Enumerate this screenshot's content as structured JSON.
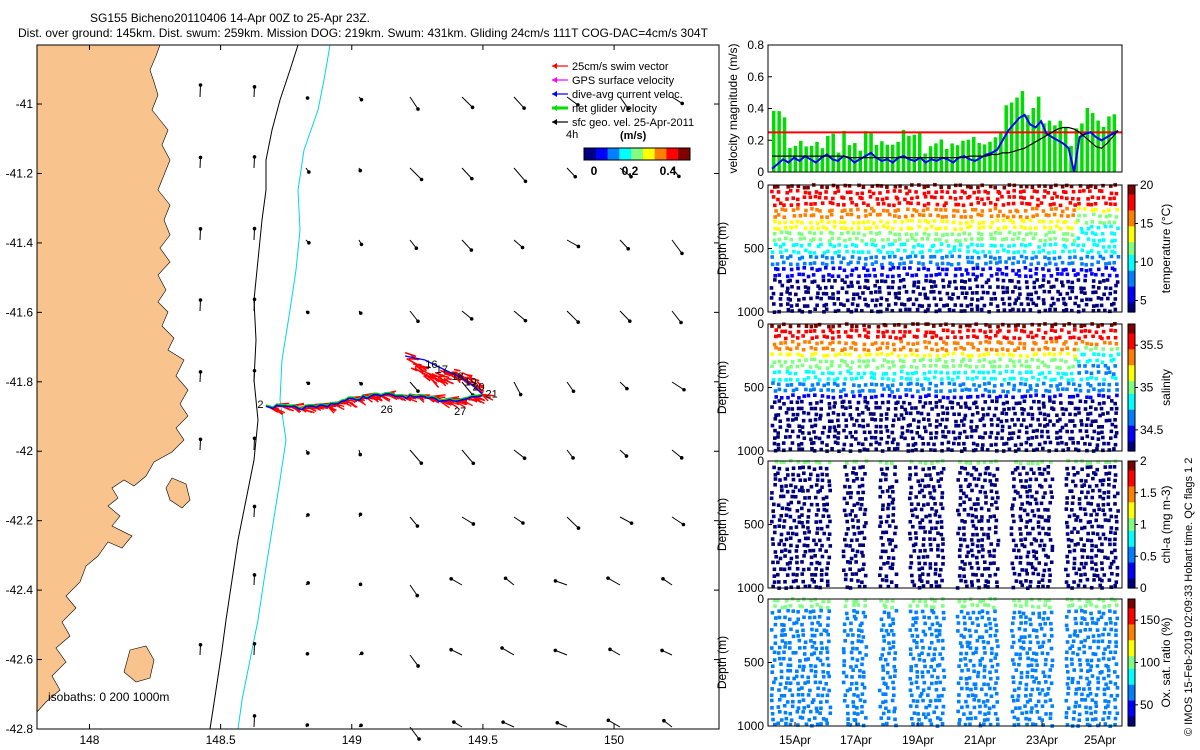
{
  "header": {
    "title": "SG155 Bicheno20110406 14-Apr 00Z to 25-Apr 23Z.",
    "subtitle": "Dist. over ground: 145km. Dist. swum: 259km. Mission DOG: 219km. Swum: 431km. Gliding 24cm/s 111T COG-DAC=4cm/s 304T"
  },
  "colors": {
    "land": "#f9c38e",
    "coast_line": "#000000",
    "isobath_200": "#000000",
    "isobath_1000": "#00d7e6",
    "swim": "#ff0000",
    "gps": "#ff00ff",
    "dac": "#0000ff",
    "net": "#00dd00",
    "geo": "#000000"
  },
  "legend": {
    "items": [
      {
        "label": "25cm/s swim vector",
        "color": "#ff0000"
      },
      {
        "label": "GPS surface velocity",
        "color": "#ff00ff"
      },
      {
        "label": "dive-avg current veloc.",
        "color": "#0000ff"
      },
      {
        "label": "net glider velocity",
        "color": "#00dd00"
      },
      {
        "label": "sfc geo. vel. 25-Apr-2011",
        "color": "#000000"
      }
    ],
    "interval": "4h",
    "colorbar_title": "(m/s)",
    "colorbar_ticks": [
      "0",
      "0.2",
      "0.4"
    ]
  },
  "isobaths_note": "isobaths: 0  200  1000m",
  "credit": "© IMOS 15-Feb-2019 02:09:33 Hobart time. QC flags 1  2",
  "chart_data": [
    {
      "type": "scatter",
      "name": "map",
      "x_ticks": [
        "148",
        "148.5",
        "149",
        "149.5",
        "150"
      ],
      "y_ticks": [
        "-41",
        "-41.2",
        "-41.4",
        "-41.6",
        "-41.8",
        "-42",
        "-42.2",
        "-42.4",
        "-42.6",
        "-42.8"
      ],
      "xlim": [
        147.8,
        150.4
      ],
      "ylim": [
        -42.8,
        -40.83
      ],
      "track_labels": [
        {
          "lon": 148.64,
          "lat": -41.875,
          "text": "2"
        },
        {
          "lon": 149.11,
          "lat": -41.89,
          "text": "26"
        },
        {
          "lon": 149.28,
          "lat": -41.76,
          "text": "16"
        },
        {
          "lon": 149.32,
          "lat": -41.775,
          "text": "17"
        },
        {
          "lon": 149.38,
          "lat": -41.795,
          "text": "18"
        },
        {
          "lon": 149.43,
          "lat": -41.81,
          "text": "19"
        },
        {
          "lon": 149.46,
          "lat": -41.825,
          "text": "20"
        },
        {
          "lon": 149.51,
          "lat": -41.845,
          "text": "21"
        },
        {
          "lon": 149.39,
          "lat": -41.895,
          "text": "27"
        }
      ]
    },
    {
      "type": "line",
      "name": "velocity",
      "ylabel": "velocity magnitude (m/s)",
      "ylim": [
        0,
        0.8
      ],
      "y_ticks": [
        "0",
        "0.2",
        "0.4",
        "0.6",
        "0.8"
      ],
      "swim_speed": 0.25,
      "series": [
        {
          "name": "dive-avg current",
          "color": "#0000ff",
          "values": [
            0.02,
            0.05,
            0.08,
            0.06,
            0.09,
            0.07,
            0.1,
            0.08,
            0.06,
            0.09,
            0.11,
            0.08,
            0.07,
            0.1,
            0.09,
            0.06,
            0.08,
            0.1,
            0.12,
            0.09,
            0.07,
            0.08,
            0.06,
            0.09,
            0.1,
            0.08,
            0.07,
            0.09,
            0.06,
            0.08,
            0.07,
            0.09,
            0.08,
            0.06,
            0.09,
            0.1,
            0.08,
            0.07,
            0.09,
            0.11,
            0.12,
            0.14,
            0.2,
            0.26,
            0.3,
            0.34,
            0.36,
            0.3,
            0.28,
            0.32,
            0.24,
            0.22,
            0.2,
            0.18,
            0.15,
            0.0,
            0.22,
            0.24,
            0.25,
            0.22,
            0.2,
            0.22,
            0.24,
            0.26
          ]
        },
        {
          "name": "sfc geostrophic",
          "color": "#000000",
          "values": [
            0.1,
            0.1,
            0.1,
            0.1,
            0.1,
            0.1,
            0.1,
            0.1,
            0.1,
            0.1,
            0.1,
            0.1,
            0.1,
            0.1,
            0.09,
            0.09,
            0.09,
            0.09,
            0.09,
            0.09,
            0.09,
            0.09,
            0.09,
            0.09,
            0.09,
            0.09,
            0.09,
            0.09,
            0.09,
            0.09,
            0.09,
            0.09,
            0.09,
            0.09,
            0.09,
            0.09,
            0.1,
            0.1,
            0.1,
            0.1,
            0.11,
            0.11,
            0.12,
            0.12,
            0.13,
            0.14,
            0.15,
            0.17,
            0.19,
            0.21,
            0.23,
            0.25,
            0.27,
            0.28,
            0.28,
            0.27,
            0.25,
            0.22,
            0.19,
            0.16,
            0.15,
            0.18,
            0.22,
            0.26
          ]
        }
      ]
    },
    {
      "type": "scatter",
      "name": "temperature",
      "ylabel": "Depth (m)",
      "colorbar_label": "temperature (°C)",
      "colorbar_ticks": [
        "5",
        "10",
        "15",
        "20"
      ],
      "ylim": [
        1000,
        0
      ],
      "y_ticks": [
        "0",
        "500",
        "1000"
      ]
    },
    {
      "type": "scatter",
      "name": "salinity",
      "ylabel": "Depth (m)",
      "colorbar_label": "salinity",
      "colorbar_ticks": [
        "34.5",
        "35",
        "35.5"
      ],
      "ylim": [
        1000,
        0
      ],
      "y_ticks": [
        "0",
        "500",
        "1000"
      ]
    },
    {
      "type": "scatter",
      "name": "chlorophyll",
      "ylabel": "Depth (m)",
      "colorbar_label": "chl-a (mg m-3)",
      "colorbar_ticks": [
        "0",
        "0.5",
        "1",
        "1.5",
        "2"
      ],
      "ylim": [
        1000,
        0
      ],
      "y_ticks": [
        "0",
        "500",
        "1000"
      ]
    },
    {
      "type": "scatter",
      "name": "oxygen",
      "ylabel": "Depth (m)",
      "colorbar_label": "Ox. sat. ratio (%)",
      "colorbar_ticks": [
        "50",
        "100",
        "150"
      ],
      "ylim": [
        1000,
        0
      ],
      "y_ticks": [
        "0",
        "500",
        "1000"
      ],
      "x_ticks": [
        "15Apr",
        "17Apr",
        "19Apr",
        "21Apr",
        "23Apr",
        "25Apr"
      ]
    }
  ]
}
